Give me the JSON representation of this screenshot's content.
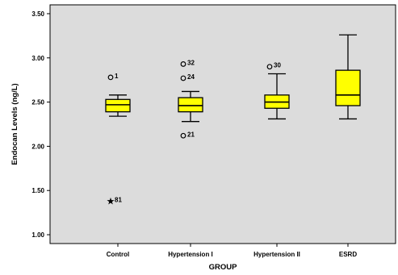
{
  "chart_data": {
    "type": "boxplot",
    "title": "",
    "xlabel": "GROUP",
    "ylabel": "Endocan Levels (ng/L)",
    "ylim": [
      0.9,
      3.6
    ],
    "yticks": [
      "1.00",
      "1.50",
      "2.00",
      "2.50",
      "3.00",
      "3.50"
    ],
    "grid": false,
    "colors": {
      "plot_bg": "#dcdcdc",
      "box_fill": "#ffff00",
      "box_stroke": "#000000",
      "axis": "#000000"
    },
    "categories": [
      "Control",
      "Hypertension I",
      "Hypertension II",
      "ESRD"
    ],
    "boxes": [
      {
        "category": "Control",
        "whisker_low": 2.34,
        "q1": 2.39,
        "median": 2.47,
        "q3": 2.53,
        "whisker_high": 2.58,
        "outliers": [
          {
            "value": 2.78,
            "label": "1",
            "marker": "circle"
          },
          {
            "value": 1.38,
            "label": "81",
            "marker": "star"
          }
        ]
      },
      {
        "category": "Hypertension I",
        "whisker_low": 2.28,
        "q1": 2.39,
        "median": 2.46,
        "q3": 2.55,
        "whisker_high": 2.62,
        "outliers": [
          {
            "value": 2.93,
            "label": "32",
            "marker": "circle"
          },
          {
            "value": 2.77,
            "label": "24",
            "marker": "circle"
          },
          {
            "value": 2.12,
            "label": "21",
            "marker": "circle"
          }
        ]
      },
      {
        "category": "Hypertension II",
        "whisker_low": 2.31,
        "q1": 2.43,
        "median": 2.5,
        "q3": 2.58,
        "whisker_high": 2.82,
        "outliers": [
          {
            "value": 2.9,
            "label": "30",
            "marker": "circle"
          }
        ]
      },
      {
        "category": "ESRD",
        "whisker_low": 2.31,
        "q1": 2.46,
        "median": 2.58,
        "q3": 2.86,
        "whisker_high": 3.26,
        "outliers": []
      }
    ]
  }
}
